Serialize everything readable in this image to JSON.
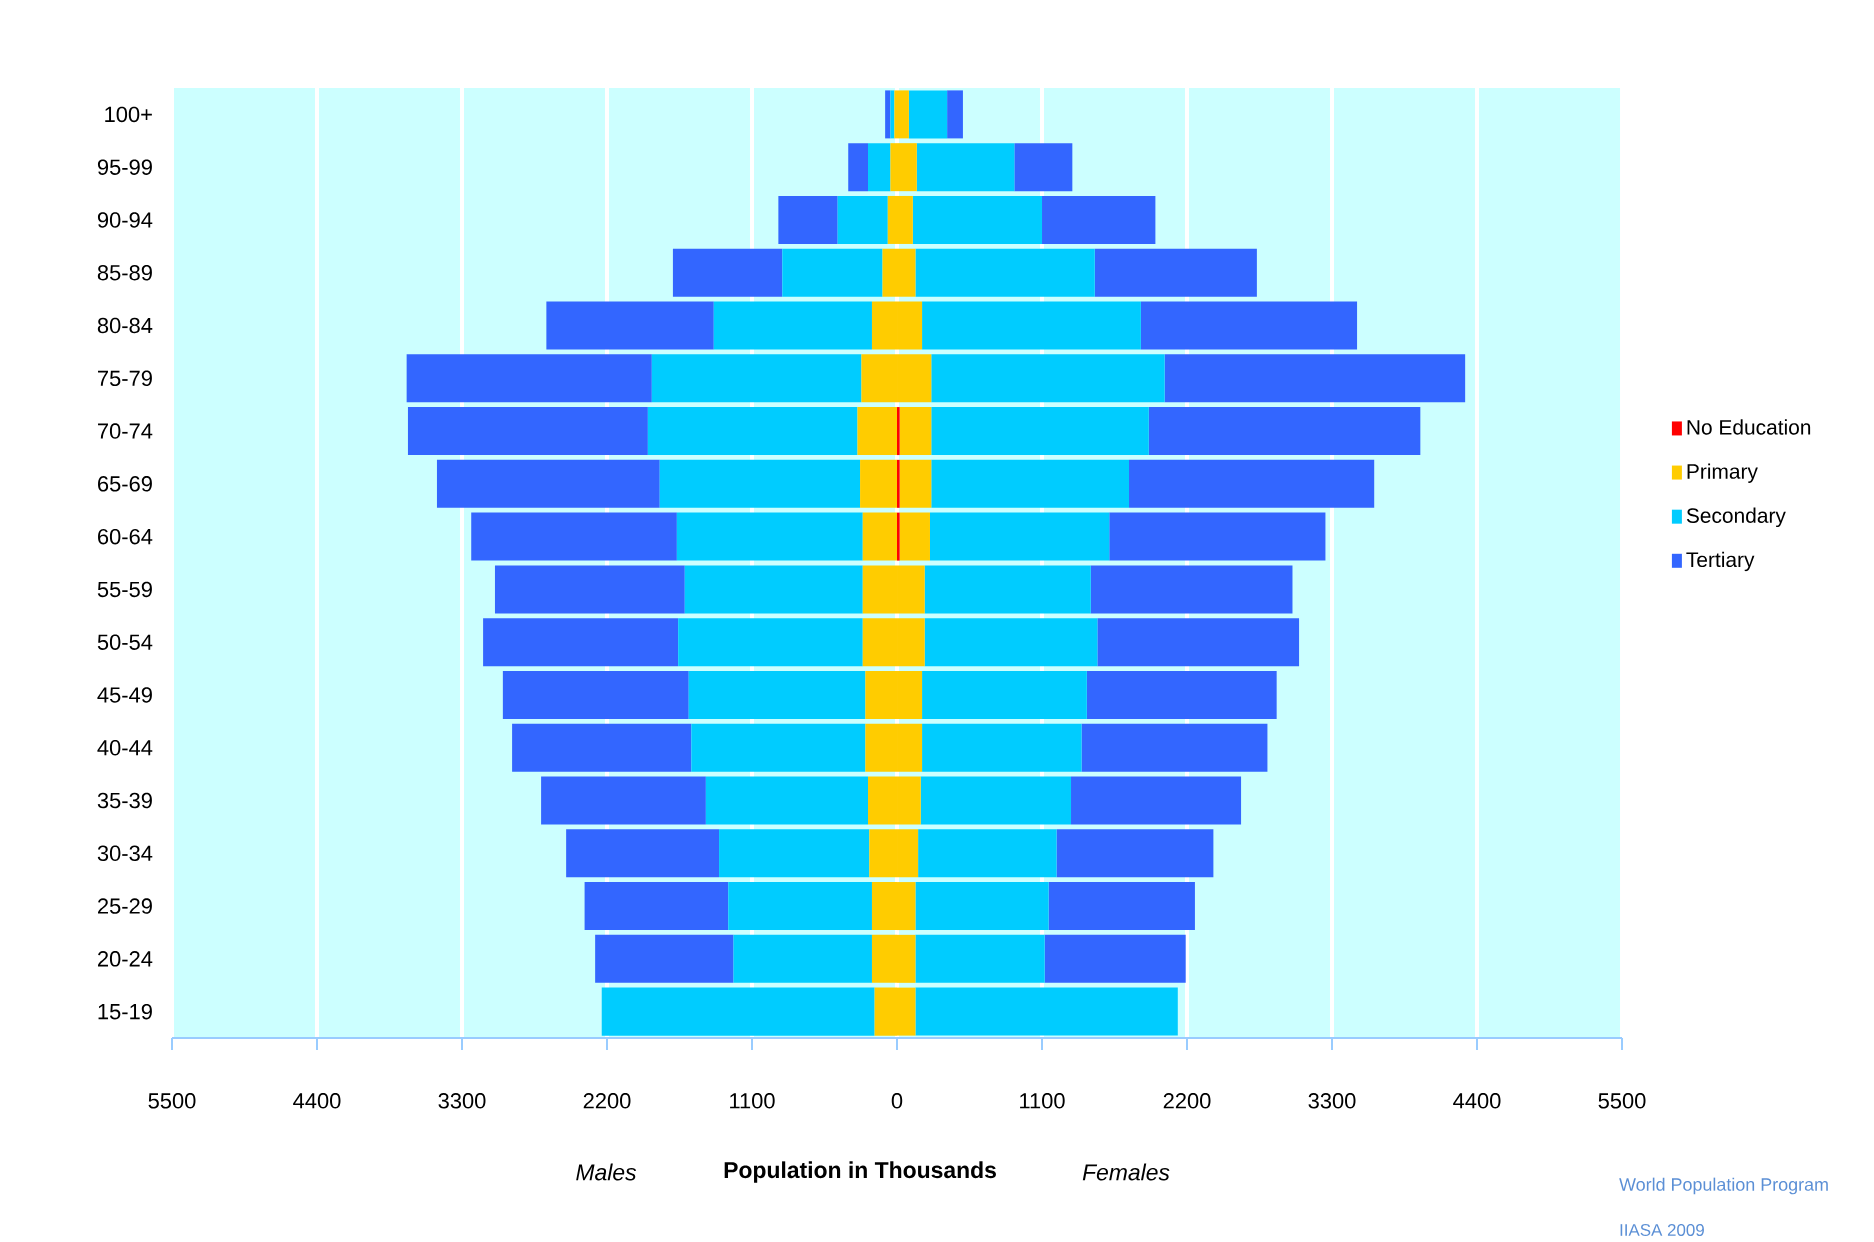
{
  "chart_data": {
    "type": "bar",
    "orientation": "horizontal",
    "stacked": true,
    "xlabel": "Population in Thousands",
    "annotations": [
      "Males",
      "Females",
      "World Population Program",
      "IIASA 2009"
    ],
    "categories": [
      "100+",
      "95-99",
      "90-94",
      "85-89",
      "80-84",
      "75-79",
      "70-74",
      "65-69",
      "60-64",
      "55-59",
      "50-54",
      "45-49",
      "40-44",
      "35-39",
      "30-34",
      "25-29",
      "20-24",
      "15-19"
    ],
    "series": [
      {
        "name": "No Education",
        "color": "#ff0000",
        "values": [
          0,
          0,
          0,
          0,
          0,
          0,
          20,
          20,
          20,
          0,
          0,
          0,
          0,
          0,
          0,
          0,
          0,
          0
        ]
      },
      {
        "name": "Primary",
        "color": "#ffcc00",
        "values": [
          90,
          150,
          120,
          140,
          190,
          260,
          240,
          240,
          230,
          210,
          210,
          190,
          190,
          180,
          160,
          140,
          140,
          140
        ]
      },
      {
        "name": "Secondary",
        "color": "#00ccff",
        "values": [
          290,
          740,
          980,
          1360,
          1660,
          1770,
          1650,
          1500,
          1360,
          1260,
          1310,
          1250,
          1210,
          1140,
          1050,
          1010,
          980,
          1990
        ]
      },
      {
        "name": "Tertiary",
        "color": "#3366ff",
        "values": [
          120,
          440,
          860,
          1230,
          1640,
          2280,
          2060,
          1860,
          1640,
          1530,
          1530,
          1440,
          1410,
          1290,
          1190,
          1110,
          1070,
          0
        ]
      },
      {
        "color": "#ffcc00",
        "values": [
          -20,
          -50,
          -70,
          -110,
          -190,
          -270,
          -300,
          -280,
          -260,
          -260,
          -260,
          -240,
          -240,
          -220,
          -210,
          -190,
          -190,
          -170
        ]
      },
      {
        "color": "#00ccff",
        "values": [
          -30,
          -170,
          -380,
          -760,
          -1200,
          -1590,
          -1590,
          -1520,
          -1410,
          -1350,
          -1400,
          -1340,
          -1320,
          -1230,
          -1140,
          -1090,
          -1050,
          -2070
        ]
      },
      {
        "color": "#3366ff",
        "values": [
          -40,
          -150,
          -450,
          -830,
          -1270,
          -1860,
          -1820,
          -1690,
          -1560,
          -1440,
          -1480,
          -1410,
          -1360,
          -1250,
          -1160,
          -1090,
          -1050,
          0
        ]
      }
    ],
    "xlim": [
      -5500,
      5500
    ],
    "xticks": [
      {
        "value": -5500,
        "label": "5500"
      },
      {
        "value": -4400,
        "label": "4400"
      },
      {
        "value": -3300,
        "label": "3300"
      },
      {
        "value": -2200,
        "label": "2200"
      },
      {
        "value": -1100,
        "label": "1100"
      },
      0,
      1100,
      2200,
      3300,
      4400,
      5500
    ],
    "grid": "x",
    "legend": "right"
  }
}
